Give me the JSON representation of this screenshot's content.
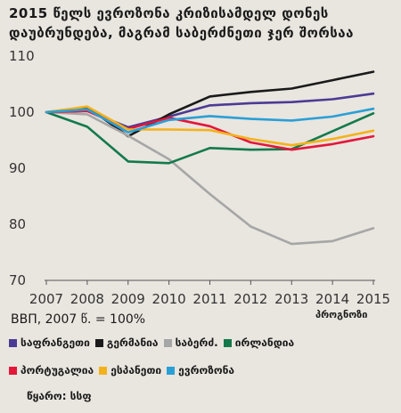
{
  "chart_data": {
    "type": "line",
    "title": "2015 წელს ევროზონა კრიზისამდელ დონეს დაუბრუნდება, მაგრამ საბერძნეთი ჯერ შორსაა",
    "x": [
      "2007",
      "2008",
      "2009",
      "2010",
      "2011",
      "2012",
      "2013",
      "2014",
      "2015"
    ],
    "ylim": [
      70,
      110
    ],
    "yticks": [
      70,
      80,
      90,
      100,
      110
    ],
    "ylabel": "ВВП, 2007 წ. = 100%",
    "annotation": "პროგნოზი",
    "grid": false,
    "legend_position": "bottom",
    "series": [
      {
        "name": "საფრანგეთი",
        "color": "#4b3b94",
        "values": [
          100,
          100.2,
          97.3,
          99.2,
          101.2,
          101.6,
          101.8,
          102.3,
          103.3
        ]
      },
      {
        "name": "გერმანია",
        "color": "#1a1a1a",
        "values": [
          100,
          100.9,
          95.7,
          99.6,
          102.8,
          103.6,
          104.2,
          105.7,
          107.2
        ]
      },
      {
        "name": "საბერძ.",
        "color": "#a6a6a6",
        "values": [
          100,
          99.6,
          95.8,
          91.6,
          85.4,
          79.6,
          76.5,
          77.0,
          79.3
        ]
      },
      {
        "name": "ირლანდია",
        "color": "#127a4b",
        "values": [
          100,
          97.4,
          91.2,
          90.9,
          93.6,
          93.3,
          93.4,
          96.6,
          99.8
        ]
      },
      {
        "name": "პორტუგალია",
        "color": "#e3173a",
        "values": [
          100,
          100.2,
          97.0,
          99.0,
          97.5,
          94.6,
          93.3,
          94.3,
          95.7
        ]
      },
      {
        "name": "ესპანეთი",
        "color": "#f3b21d",
        "values": [
          100,
          101.0,
          96.9,
          96.9,
          96.8,
          95.2,
          94.1,
          95.2,
          96.7
        ]
      },
      {
        "name": "ევროზონა",
        "color": "#2a9fd6",
        "values": [
          100,
          100.5,
          96.4,
          98.6,
          99.3,
          98.8,
          98.5,
          99.2,
          100.6
        ]
      }
    ]
  },
  "source": "წყარო: სსფ"
}
